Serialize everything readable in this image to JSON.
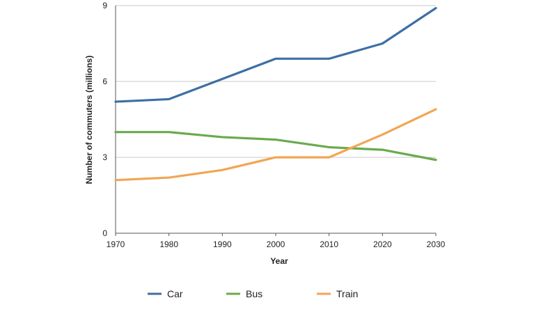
{
  "chart_data": {
    "type": "line",
    "title": "",
    "xlabel": "Year",
    "ylabel": "Number of commuters (millions)",
    "x": [
      1970,
      1980,
      1990,
      2000,
      2010,
      2020,
      2030
    ],
    "x_tick_labels": [
      "1970",
      "1980",
      "1990",
      "2000",
      "2010",
      "2020",
      "2030"
    ],
    "ylim": [
      0,
      9
    ],
    "y_ticks": [
      0,
      3,
      6,
      9
    ],
    "y_tick_labels": [
      "0",
      "3",
      "6",
      "9"
    ],
    "grid": true,
    "legend_position": "bottom",
    "series": [
      {
        "name": "Car",
        "color": "#3d6fa5",
        "values": [
          5.2,
          5.3,
          6.1,
          6.9,
          6.9,
          7.5,
          8.9
        ]
      },
      {
        "name": "Bus",
        "color": "#6aaa4e",
        "values": [
          4.0,
          4.0,
          3.8,
          3.7,
          3.4,
          3.3,
          2.9
        ]
      },
      {
        "name": "Train",
        "color": "#f2a553",
        "values": [
          2.1,
          2.2,
          2.5,
          3.0,
          3.0,
          3.9,
          4.9
        ]
      }
    ]
  }
}
